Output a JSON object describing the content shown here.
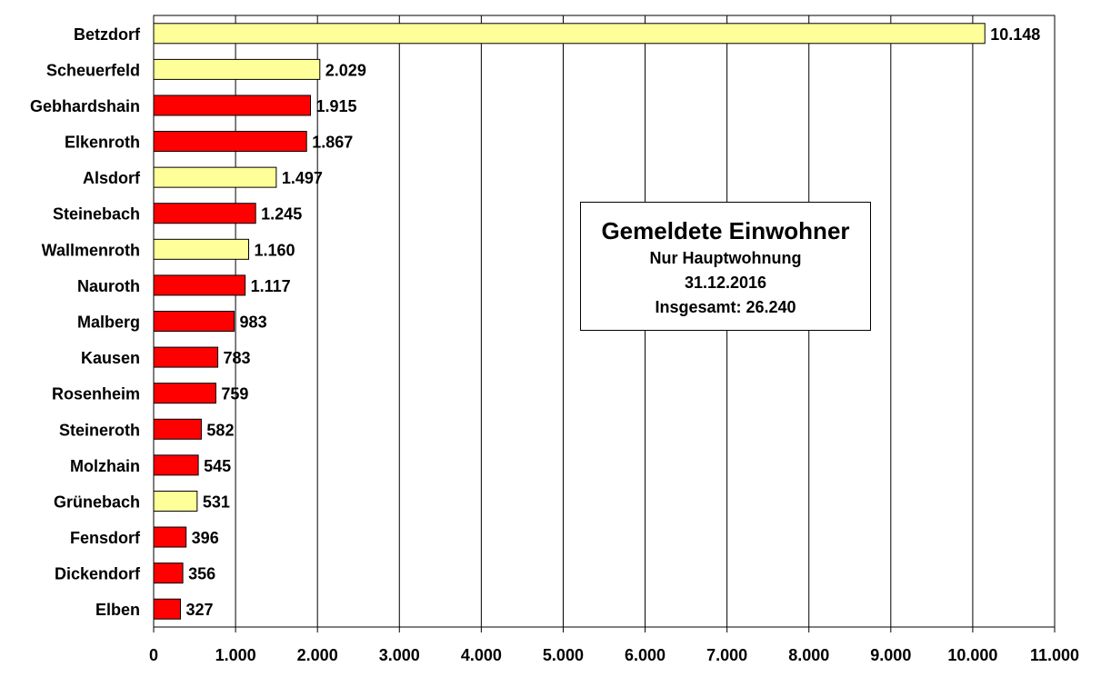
{
  "chart_data": {
    "type": "bar",
    "orientation": "horizontal",
    "categories": [
      "Betzdorf",
      "Scheuerfeld",
      "Gebhardshain",
      "Elkenroth",
      "Alsdorf",
      "Steinebach",
      "Wallmenroth",
      "Nauroth",
      "Malberg",
      "Kausen",
      "Rosenheim",
      "Steineroth",
      "Molzhain",
      "Grünebach",
      "Fensdorf",
      "Dickendorf",
      "Elben"
    ],
    "values": [
      10148,
      2029,
      1915,
      1867,
      1497,
      1245,
      1160,
      1117,
      983,
      783,
      759,
      582,
      545,
      531,
      396,
      356,
      327
    ],
    "value_labels": [
      "10.148",
      "2.029",
      "1.915",
      "1.867",
      "1.497",
      "1.245",
      "1.160",
      "1.117",
      "983",
      "783",
      "759",
      "582",
      "545",
      "531",
      "396",
      "356",
      "327"
    ],
    "bar_colors": [
      "#FFFF99",
      "#FFFF99",
      "#FF0000",
      "#FF0000",
      "#FFFF99",
      "#FF0000",
      "#FFFF99",
      "#FF0000",
      "#FF0000",
      "#FF0000",
      "#FF0000",
      "#FF0000",
      "#FF0000",
      "#FFFF99",
      "#FF0000",
      "#FF0000",
      "#FF0000"
    ],
    "xlim": [
      0,
      11000
    ],
    "xticks": [
      0,
      1000,
      2000,
      3000,
      4000,
      5000,
      6000,
      7000,
      8000,
      9000,
      10000,
      11000
    ],
    "xtick_labels": [
      "0",
      "1.000",
      "2.000",
      "3.000",
      "4.000",
      "5.000",
      "6.000",
      "7.000",
      "8.000",
      "9.000",
      "10.000",
      "11.000"
    ],
    "xlabel": "",
    "ylabel": "",
    "grid": "vertical",
    "legend": "none"
  },
  "info_box": {
    "title": "Gemeldete Einwohner",
    "line1": "Nur Hauptwohnung",
    "line2": "31.12.2016",
    "line3": "Insgesamt: 26.240"
  }
}
